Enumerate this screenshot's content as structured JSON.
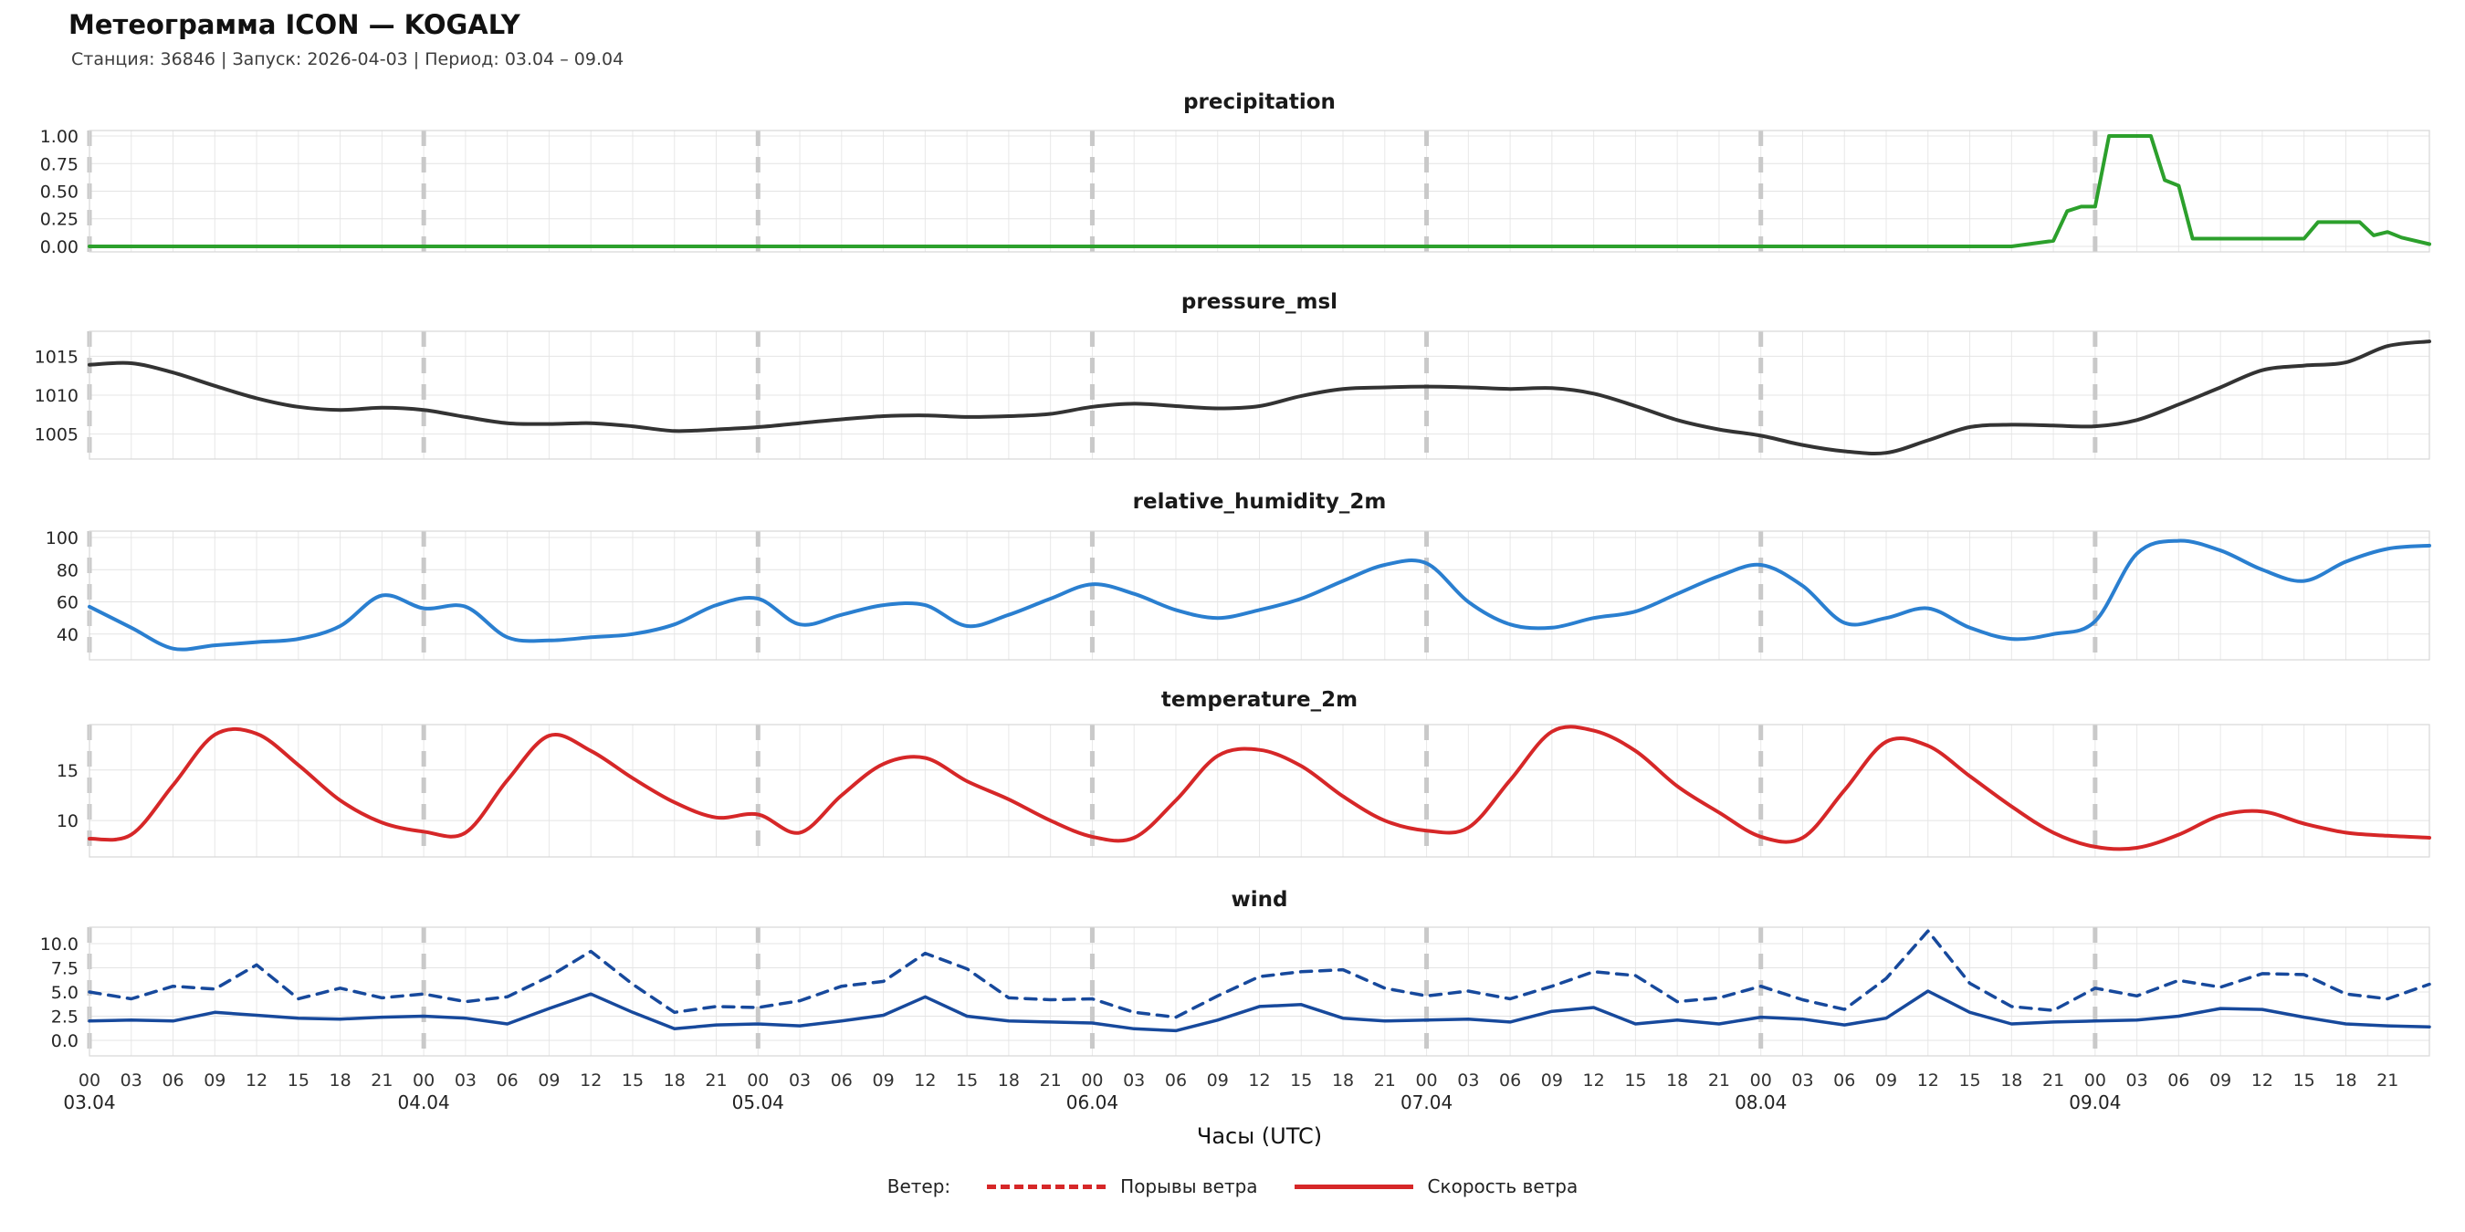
{
  "header": {
    "title": "Метеограмма ICON — KOGALY",
    "subtitle": "Станция: 36846  | Запуск: 2026-04-03  | Период: 03.04 – 09.04"
  },
  "xaxis": {
    "label": "Часы (UTC)",
    "hours_total": 168,
    "tick_step_hours": 3,
    "day_starts_hours": [
      0,
      24,
      48,
      72,
      96,
      120,
      144
    ],
    "hour_labels": [
      "00",
      "03",
      "06",
      "09",
      "12",
      "15",
      "18",
      "21"
    ],
    "day_labels": [
      "03.04",
      "04.04",
      "05.04",
      "06.04",
      "07.04",
      "08.04",
      "09.04"
    ]
  },
  "legend": {
    "label": "Ветер:",
    "color": "#d62728",
    "items": [
      {
        "style": "dashed",
        "label": "Порывы ветра"
      },
      {
        "style": "solid",
        "label": "Скорость ветра"
      }
    ]
  },
  "chart_data": [
    {
      "type": "line",
      "title": "precipitation",
      "ylim": [
        -0.05,
        1.05
      ],
      "grid": true,
      "yticks": [
        {
          "v": 1.0,
          "label": "1.00"
        },
        {
          "v": 0.75,
          "label": "0.75"
        },
        {
          "v": 0.5,
          "label": "0.50"
        },
        {
          "v": 0.25,
          "label": "0.25"
        },
        {
          "v": 0.0,
          "label": "0.00"
        }
      ],
      "series": [
        {
          "name": "precipitation",
          "color": "#2ca02c",
          "dash": false,
          "smooth": false,
          "points": [
            [
              0,
              0
            ],
            [
              138,
              0
            ],
            [
              141,
              0.05
            ],
            [
              142,
              0.32
            ],
            [
              143,
              0.36
            ],
            [
              144,
              0.36
            ],
            [
              145,
              1.0
            ],
            [
              148,
              1.0
            ],
            [
              149,
              0.6
            ],
            [
              150,
              0.55
            ],
            [
              151,
              0.07
            ],
            [
              159,
              0.07
            ],
            [
              160,
              0.22
            ],
            [
              163,
              0.22
            ],
            [
              164,
              0.1
            ],
            [
              165,
              0.13
            ],
            [
              166,
              0.08
            ],
            [
              168,
              0.02
            ]
          ]
        }
      ]
    },
    {
      "type": "line",
      "title": "pressure_msl",
      "ylim": [
        1001.8,
        1018.2
      ],
      "grid": true,
      "yticks": [
        {
          "v": 1015,
          "label": "1015"
        },
        {
          "v": 1010,
          "label": "1010"
        },
        {
          "v": 1005,
          "label": "1005"
        }
      ],
      "series": [
        {
          "name": "pressure_msl",
          "color": "#333333",
          "dash": false,
          "smooth": true,
          "x_start": 0,
          "x_step": 3,
          "values": [
            1013.9,
            1014.1,
            1012.9,
            1011.2,
            1009.6,
            1008.5,
            1008.1,
            1008.4,
            1008.1,
            1007.2,
            1006.4,
            1006.3,
            1006.4,
            1006.0,
            1005.4,
            1005.6,
            1005.9,
            1006.4,
            1006.9,
            1007.3,
            1007.4,
            1007.2,
            1007.3,
            1007.6,
            1008.5,
            1008.9,
            1008.6,
            1008.3,
            1008.6,
            1009.9,
            1010.8,
            1011.0,
            1011.1,
            1011.0,
            1010.8,
            1010.9,
            1010.2,
            1008.6,
            1006.8,
            1005.6,
            1004.8,
            1003.6,
            1002.8,
            1002.6,
            1004.2,
            1005.9,
            1006.2,
            1006.1,
            1006.0,
            1006.8,
            1008.8,
            1011.0,
            1013.2,
            1013.8,
            1014.2,
            1016.3,
            1016.9
          ]
        }
      ]
    },
    {
      "type": "line",
      "title": "relative_humidity_2m",
      "ylim": [
        24,
        104
      ],
      "grid": true,
      "yticks": [
        {
          "v": 100,
          "label": "100"
        },
        {
          "v": 80,
          "label": "80"
        },
        {
          "v": 60,
          "label": "60"
        },
        {
          "v": 40,
          "label": "40"
        }
      ],
      "series": [
        {
          "name": "relative_humidity_2m",
          "color": "#2a7fd0",
          "dash": false,
          "smooth": true,
          "x_start": 0,
          "x_step": 3,
          "values": [
            57,
            44,
            31,
            33,
            35,
            37,
            45,
            64,
            56,
            57,
            38,
            36,
            38,
            40,
            46,
            58,
            62,
            46,
            52,
            58,
            58,
            45,
            52,
            62,
            71,
            65,
            55,
            50,
            55,
            62,
            73,
            83,
            84,
            60,
            46,
            44,
            50,
            54,
            65,
            76,
            83,
            70,
            47,
            50,
            56,
            44,
            37,
            40,
            48,
            90,
            98,
            92,
            80,
            73,
            85,
            93,
            95
          ]
        }
      ]
    },
    {
      "type": "line",
      "title": "temperature_2m",
      "ylim": [
        6.4,
        19.5
      ],
      "grid": true,
      "yticks": [
        {
          "v": 15,
          "label": "15"
        },
        {
          "v": 10,
          "label": "10"
        }
      ],
      "series": [
        {
          "name": "temperature_2m",
          "color": "#d62728",
          "dash": false,
          "smooth": true,
          "x_start": 0,
          "x_step": 3,
          "values": [
            8.2,
            8.6,
            13.5,
            18.5,
            18.6,
            15.5,
            12.0,
            9.8,
            8.9,
            8.8,
            14.0,
            18.4,
            16.9,
            14.2,
            11.8,
            10.3,
            10.6,
            8.8,
            12.5,
            15.6,
            16.2,
            13.9,
            12.1,
            10.0,
            8.4,
            8.3,
            12.0,
            16.4,
            17.0,
            15.4,
            12.4,
            10.0,
            9.0,
            9.3,
            14.0,
            18.8,
            18.9,
            16.9,
            13.4,
            10.8,
            8.4,
            8.3,
            13.0,
            17.8,
            17.4,
            14.4,
            11.4,
            8.8,
            7.4,
            7.3,
            8.6,
            10.5,
            10.9,
            9.7,
            8.8,
            8.5,
            8.3
          ]
        }
      ]
    },
    {
      "type": "line",
      "title": "wind",
      "ylim": [
        -1.6,
        11.7
      ],
      "grid": true,
      "yticks": [
        {
          "v": 10.0,
          "label": "10.0"
        },
        {
          "v": 7.5,
          "label": "7.5"
        },
        {
          "v": 5.0,
          "label": "5.0"
        },
        {
          "v": 2.5,
          "label": "2.5"
        },
        {
          "v": 0.0,
          "label": "0.0"
        }
      ],
      "series": [
        {
          "name": "wind_gusts",
          "color": "#17499c",
          "dash": true,
          "smooth": false,
          "x_start": 0,
          "x_step": 3,
          "values": [
            5.0,
            4.3,
            5.6,
            5.3,
            7.8,
            4.3,
            5.4,
            4.4,
            4.8,
            4.0,
            4.5,
            6.6,
            9.2,
            5.8,
            2.9,
            3.5,
            3.4,
            4.1,
            5.6,
            6.1,
            9.0,
            7.4,
            4.4,
            4.2,
            4.3,
            2.9,
            2.4,
            4.6,
            6.6,
            7.1,
            7.3,
            5.4,
            4.6,
            5.1,
            4.3,
            5.6,
            7.1,
            6.7,
            4.0,
            4.4,
            5.6,
            4.2,
            3.2,
            6.4,
            11.3,
            5.9,
            3.5,
            3.1,
            5.4,
            4.6,
            6.2,
            5.5,
            6.9,
            6.8,
            4.8,
            4.3,
            5.8
          ]
        },
        {
          "name": "wind_speed",
          "color": "#17499c",
          "dash": false,
          "smooth": false,
          "x_start": 0,
          "x_step": 3,
          "values": [
            2.0,
            2.1,
            2.0,
            2.9,
            2.6,
            2.3,
            2.2,
            2.4,
            2.5,
            2.3,
            1.7,
            3.3,
            4.8,
            2.9,
            1.2,
            1.6,
            1.7,
            1.5,
            2.0,
            2.6,
            4.5,
            2.5,
            2.0,
            1.9,
            1.8,
            1.2,
            1.0,
            2.1,
            3.5,
            3.7,
            2.3,
            2.0,
            2.1,
            2.2,
            1.9,
            3.0,
            3.4,
            1.7,
            2.1,
            1.7,
            2.4,
            2.2,
            1.6,
            2.3,
            5.1,
            2.9,
            1.7,
            1.9,
            2.0,
            2.1,
            2.5,
            3.3,
            3.2,
            2.4,
            1.7,
            1.5,
            1.4
          ]
        }
      ]
    }
  ]
}
